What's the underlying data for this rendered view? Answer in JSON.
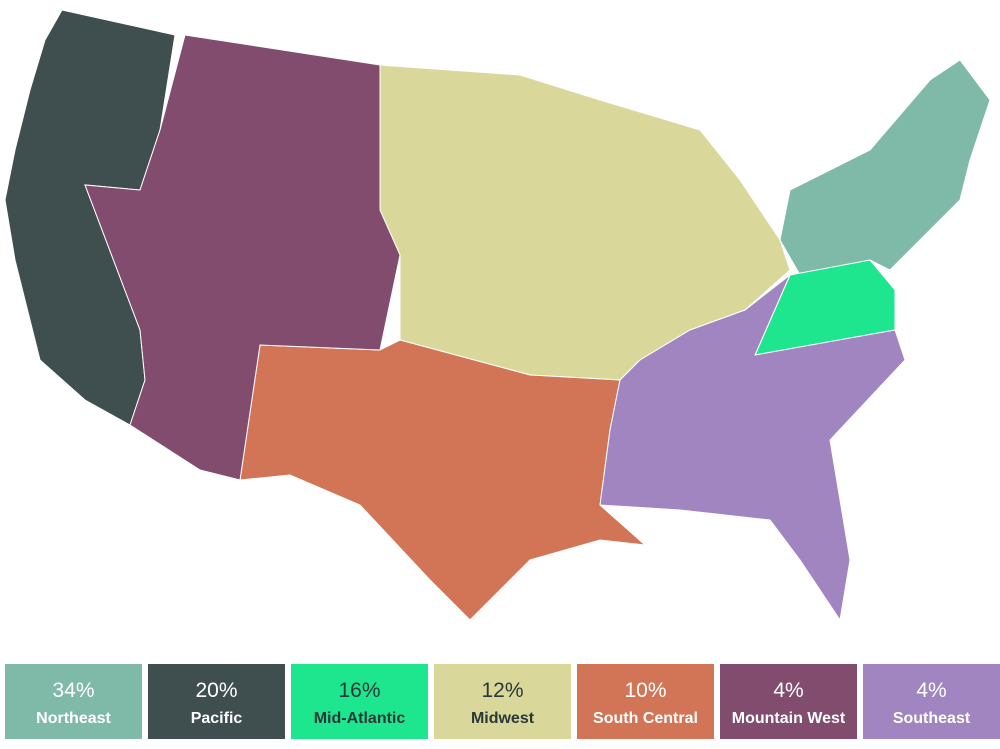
{
  "chart_data": {
    "type": "choropleth",
    "categories": [
      "Northeast",
      "Pacific",
      "Mid-Atlantic",
      "Midwest",
      "South Central",
      "Mountain West",
      "Southeast"
    ],
    "values": [
      34,
      20,
      16,
      12,
      10,
      4,
      4
    ],
    "value_labels": [
      "34%",
      "20%",
      "16%",
      "12%",
      "10%",
      "4%",
      "4%"
    ],
    "colors": [
      "#7fbaa9",
      "#3f4e4f",
      "#1de68e",
      "#d9d89a",
      "#d27556",
      "#824c6f",
      "#a185c0"
    ]
  }
}
